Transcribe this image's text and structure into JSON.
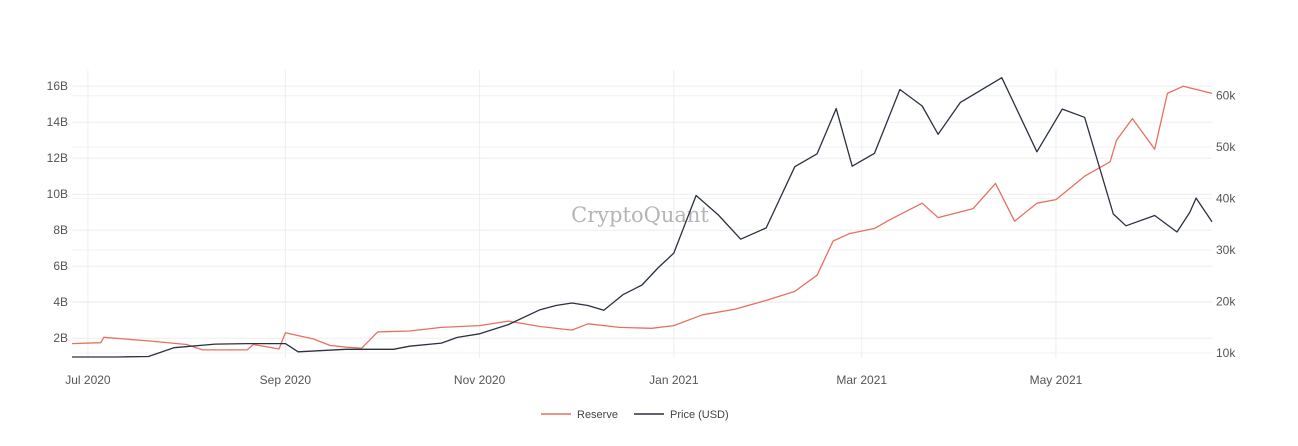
{
  "watermark": "CryptoQuant",
  "chart_data": {
    "type": "line",
    "x_ticks": [
      "Jul 2020",
      "Sep 2020",
      "Nov 2020",
      "Jan 2021",
      "Mar 2021",
      "May 2021"
    ],
    "y_left_ticks": [
      "2B",
      "4B",
      "6B",
      "8B",
      "10B",
      "12B",
      "14B",
      "16B"
    ],
    "y_right_ticks": [
      "10k",
      "20k",
      "30k",
      "40k",
      "50k",
      "60k"
    ],
    "y_left_range": [
      0.9,
      16.9
    ],
    "y_right_range": [
      9,
      65
    ],
    "x_range": [
      "2020-06-26",
      "2021-06-19"
    ],
    "grid": true,
    "legend_position": "bottom-center",
    "series": [
      {
        "name": "Reserve",
        "axis": "left",
        "color": "#e8705f",
        "points": [
          [
            "2020-06-26",
            1.7
          ],
          [
            "2020-07-05",
            1.75
          ],
          [
            "2020-07-06",
            2.05
          ],
          [
            "2020-07-20",
            1.85
          ],
          [
            "2020-08-01",
            1.65
          ],
          [
            "2020-08-06",
            1.35
          ],
          [
            "2020-08-20",
            1.35
          ],
          [
            "2020-08-22",
            1.65
          ],
          [
            "2020-08-30",
            1.4
          ],
          [
            "2020-09-01",
            2.3
          ],
          [
            "2020-09-10",
            1.95
          ],
          [
            "2020-09-15",
            1.6
          ],
          [
            "2020-09-20",
            1.5
          ],
          [
            "2020-09-25",
            1.45
          ],
          [
            "2020-09-30",
            2.35
          ],
          [
            "2020-10-10",
            2.4
          ],
          [
            "2020-10-20",
            2.6
          ],
          [
            "2020-11-01",
            2.7
          ],
          [
            "2020-11-10",
            2.95
          ],
          [
            "2020-11-20",
            2.65
          ],
          [
            "2020-11-30",
            2.45
          ],
          [
            "2020-12-05",
            2.8
          ],
          [
            "2020-12-15",
            2.6
          ],
          [
            "2020-12-25",
            2.55
          ],
          [
            "2021-01-01",
            2.7
          ],
          [
            "2021-01-10",
            3.3
          ],
          [
            "2021-01-20",
            3.6
          ],
          [
            "2021-01-30",
            4.1
          ],
          [
            "2021-02-08",
            4.6
          ],
          [
            "2021-02-15",
            5.5
          ],
          [
            "2021-02-20",
            7.4
          ],
          [
            "2021-02-25",
            7.8
          ],
          [
            "2021-03-05",
            8.1
          ],
          [
            "2021-03-10",
            8.6
          ],
          [
            "2021-03-20",
            9.5
          ],
          [
            "2021-03-25",
            8.7
          ],
          [
            "2021-04-05",
            9.2
          ],
          [
            "2021-04-12",
            10.6
          ],
          [
            "2021-04-18",
            8.5
          ],
          [
            "2021-04-25",
            9.5
          ],
          [
            "2021-05-01",
            9.7
          ],
          [
            "2021-05-10",
            11.0
          ],
          [
            "2021-05-18",
            11.8
          ],
          [
            "2021-05-20",
            13.0
          ],
          [
            "2021-05-25",
            14.2
          ],
          [
            "2021-06-01",
            12.5
          ],
          [
            "2021-06-05",
            15.6
          ],
          [
            "2021-06-10",
            16.0
          ],
          [
            "2021-06-19",
            15.6
          ]
        ]
      },
      {
        "name": "Price (USD)",
        "axis": "right",
        "color": "#2a3140",
        "points": [
          [
            "2020-06-26",
            9.2
          ],
          [
            "2020-07-10",
            9.2
          ],
          [
            "2020-07-20",
            9.3
          ],
          [
            "2020-07-28",
            11.0
          ],
          [
            "2020-08-10",
            11.7
          ],
          [
            "2020-08-20",
            11.8
          ],
          [
            "2020-09-01",
            11.8
          ],
          [
            "2020-09-05",
            10.2
          ],
          [
            "2020-09-20",
            10.7
          ],
          [
            "2020-10-05",
            10.7
          ],
          [
            "2020-10-10",
            11.3
          ],
          [
            "2020-10-20",
            11.9
          ],
          [
            "2020-10-25",
            13.0
          ],
          [
            "2020-11-01",
            13.7
          ],
          [
            "2020-11-10",
            15.5
          ],
          [
            "2020-11-20",
            18.4
          ],
          [
            "2020-11-25",
            19.2
          ],
          [
            "2020-11-30",
            19.7
          ],
          [
            "2020-12-05",
            19.2
          ],
          [
            "2020-12-10",
            18.3
          ],
          [
            "2020-12-16",
            21.3
          ],
          [
            "2020-12-22",
            23.2
          ],
          [
            "2020-12-27",
            26.5
          ],
          [
            "2021-01-01",
            29.4
          ],
          [
            "2021-01-08",
            40.6
          ],
          [
            "2021-01-15",
            36.8
          ],
          [
            "2021-01-22",
            32.1
          ],
          [
            "2021-01-30",
            34.3
          ],
          [
            "2021-02-08",
            46.2
          ],
          [
            "2021-02-15",
            48.7
          ],
          [
            "2021-02-21",
            57.5
          ],
          [
            "2021-02-26",
            46.3
          ],
          [
            "2021-03-05",
            48.8
          ],
          [
            "2021-03-13",
            61.2
          ],
          [
            "2021-03-20",
            58.0
          ],
          [
            "2021-03-25",
            52.5
          ],
          [
            "2021-04-01",
            58.7
          ],
          [
            "2021-04-14",
            63.5
          ],
          [
            "2021-04-25",
            49.1
          ],
          [
            "2021-05-03",
            57.4
          ],
          [
            "2021-05-10",
            55.8
          ],
          [
            "2021-05-19",
            37.0
          ],
          [
            "2021-05-23",
            34.7
          ],
          [
            "2021-06-01",
            36.7
          ],
          [
            "2021-06-08",
            33.5
          ],
          [
            "2021-06-12",
            37.3
          ],
          [
            "2021-06-14",
            40.1
          ],
          [
            "2021-06-19",
            35.5
          ]
        ]
      }
    ]
  }
}
